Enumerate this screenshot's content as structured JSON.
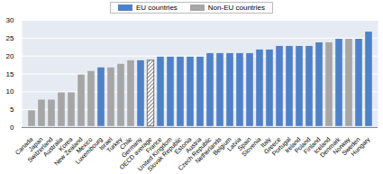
{
  "chart_data": {
    "type": "bar",
    "stacked": true,
    "grid": true,
    "legend": "top",
    "categories": [
      "Canada",
      "Japan",
      "Switzerland",
      "Australia",
      "Korea",
      "New Zealand",
      "Mexico",
      "Luxembourg",
      "Israel",
      "Turkey",
      "Chile",
      "Germany",
      "OECD average",
      "France",
      "United Kingdom",
      "Slovak Republic",
      "Estonia",
      "Austria",
      "Czech Republic",
      "Netherlands",
      "Belgium",
      "Latvia",
      "Spain",
      "Slovenia",
      "Italy",
      "Greece",
      "Portugal",
      "Ireland",
      "Poland",
      "Finland",
      "Iceland",
      "Denmark",
      "Norway",
      "Sweden",
      "Hungary"
    ],
    "series": [
      {
        "name": "EU countries",
        "color": "#4f81c7",
        "values": [
          null,
          null,
          null,
          null,
          null,
          null,
          null,
          17,
          null,
          null,
          null,
          19,
          null,
          20,
          20,
          20,
          20,
          20,
          21,
          21,
          21,
          21,
          21,
          22,
          22,
          23,
          23,
          23,
          23,
          24,
          null,
          25,
          null,
          25,
          27
        ]
      },
      {
        "name": "Non-EU countries",
        "color": "#a6a6a6",
        "values": [
          5,
          8,
          8,
          10,
          10,
          15,
          16,
          null,
          17,
          18,
          19,
          null,
          null,
          null,
          null,
          null,
          null,
          null,
          null,
          null,
          null,
          null,
          null,
          null,
          null,
          null,
          null,
          null,
          null,
          null,
          24,
          null,
          25,
          null,
          null
        ]
      },
      {
        "color": "#333333",
        "values": [
          null,
          null,
          null,
          null,
          null,
          null,
          null,
          null,
          null,
          null,
          null,
          null,
          19,
          null,
          null,
          null,
          null,
          null,
          null,
          null,
          null,
          null,
          null,
          null,
          null,
          null,
          null,
          null,
          null,
          null,
          null,
          null,
          null,
          null,
          null
        ]
      }
    ],
    "ylim": [
      0,
      30
    ],
    "yticks": [
      0,
      5,
      10,
      15,
      20,
      25,
      30
    ]
  }
}
